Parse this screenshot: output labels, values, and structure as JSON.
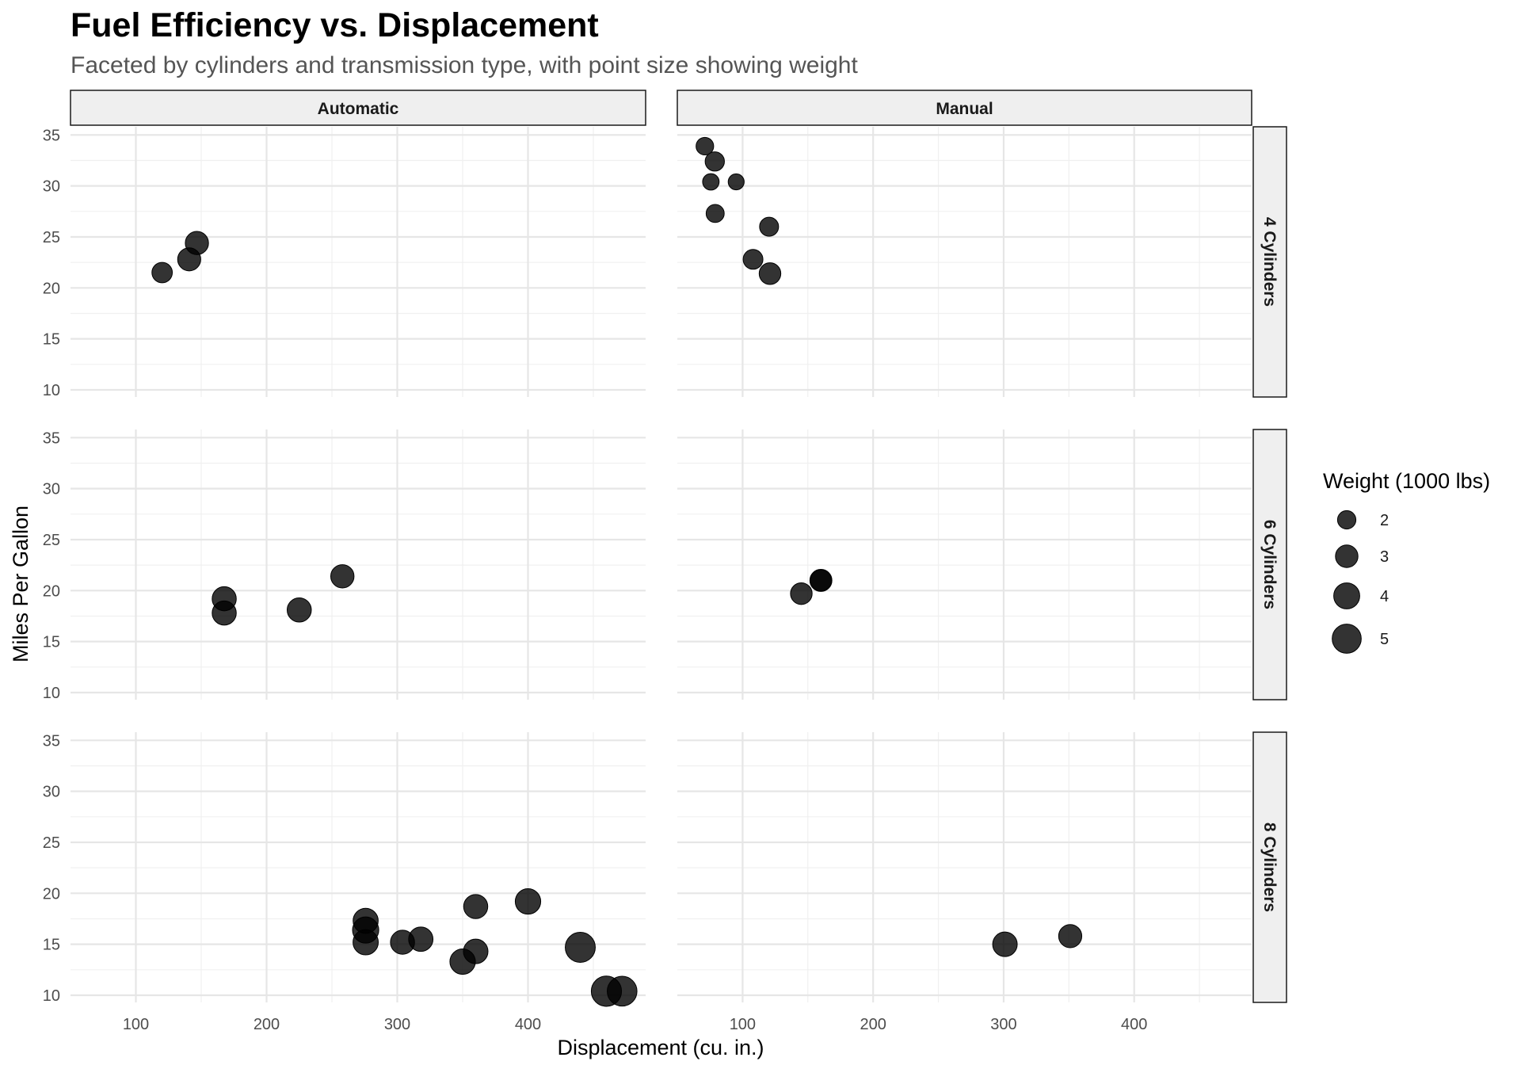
{
  "chart_data": {
    "type": "scatter",
    "title": "Fuel Efficiency vs. Displacement",
    "subtitle": "Faceted by cylinders and transmission type, with point size showing weight",
    "xlabel": "Displacement (cu. in.)",
    "ylabel": "Miles Per Gallon",
    "x_ticks": [
      100,
      200,
      300,
      400
    ],
    "y_ticks": [
      10,
      15,
      20,
      25,
      30,
      35
    ],
    "xlim": [
      50,
      490
    ],
    "ylim": [
      9.3,
      35.8
    ],
    "grid": true,
    "facet_cols": [
      "Automatic",
      "Manual"
    ],
    "facet_rows": [
      "4 Cylinders",
      "6 Cylinders",
      "8 Cylinders"
    ],
    "legend": {
      "title": "Weight (1000 lbs)",
      "position": "right",
      "entries": [
        {
          "label": "2",
          "value": 2
        },
        {
          "label": "3",
          "value": 3
        },
        {
          "label": "4",
          "value": 4
        },
        {
          "label": "5",
          "value": 5
        }
      ]
    },
    "panels": [
      {
        "row": "4 Cylinders",
        "col": "Automatic",
        "points": [
          {
            "x": 120.1,
            "y": 21.5,
            "wt": 2.465
          },
          {
            "x": 140.8,
            "y": 22.8,
            "wt": 3.15
          },
          {
            "x": 146.7,
            "y": 24.4,
            "wt": 3.19
          }
        ]
      },
      {
        "row": "4 Cylinders",
        "col": "Manual",
        "points": [
          {
            "x": 71.1,
            "y": 33.9,
            "wt": 1.835
          },
          {
            "x": 75.7,
            "y": 30.4,
            "wt": 1.615
          },
          {
            "x": 78.7,
            "y": 32.4,
            "wt": 2.2
          },
          {
            "x": 79.0,
            "y": 27.3,
            "wt": 1.935
          },
          {
            "x": 95.1,
            "y": 30.4,
            "wt": 1.513
          },
          {
            "x": 108.0,
            "y": 22.8,
            "wt": 2.32
          },
          {
            "x": 120.3,
            "y": 26.0,
            "wt": 2.14
          },
          {
            "x": 121.0,
            "y": 21.4,
            "wt": 2.78
          }
        ]
      },
      {
        "row": "6 Cylinders",
        "col": "Automatic",
        "points": [
          {
            "x": 167.6,
            "y": 19.2,
            "wt": 3.44
          },
          {
            "x": 167.6,
            "y": 17.8,
            "wt": 3.44
          },
          {
            "x": 225.0,
            "y": 18.1,
            "wt": 3.46
          },
          {
            "x": 258.0,
            "y": 21.4,
            "wt": 3.215
          }
        ]
      },
      {
        "row": "6 Cylinders",
        "col": "Manual",
        "points": [
          {
            "x": 145.0,
            "y": 19.7,
            "wt": 2.77
          },
          {
            "x": 160.0,
            "y": 21.0,
            "wt": 2.62
          },
          {
            "x": 160.0,
            "y": 21.0,
            "wt": 2.875
          }
        ]
      },
      {
        "row": "8 Cylinders",
        "col": "Automatic",
        "points": [
          {
            "x": 275.8,
            "y": 16.4,
            "wt": 4.07
          },
          {
            "x": 275.8,
            "y": 17.3,
            "wt": 3.73
          },
          {
            "x": 275.8,
            "y": 15.2,
            "wt": 3.78
          },
          {
            "x": 304.0,
            "y": 15.2,
            "wt": 3.435
          },
          {
            "x": 318.0,
            "y": 15.5,
            "wt": 3.52
          },
          {
            "x": 350.0,
            "y": 13.3,
            "wt": 3.84
          },
          {
            "x": 360.0,
            "y": 18.7,
            "wt": 3.44
          },
          {
            "x": 360.0,
            "y": 14.3,
            "wt": 3.57
          },
          {
            "x": 400.0,
            "y": 19.2,
            "wt": 3.845
          },
          {
            "x": 440.0,
            "y": 14.7,
            "wt": 5.345
          },
          {
            "x": 460.0,
            "y": 10.4,
            "wt": 5.424
          },
          {
            "x": 472.0,
            "y": 10.4,
            "wt": 5.25
          }
        ]
      },
      {
        "row": "8 Cylinders",
        "col": "Manual",
        "points": [
          {
            "x": 301.0,
            "y": 15.0,
            "wt": 3.57
          },
          {
            "x": 351.0,
            "y": 15.8,
            "wt": 3.17
          }
        ]
      }
    ]
  }
}
